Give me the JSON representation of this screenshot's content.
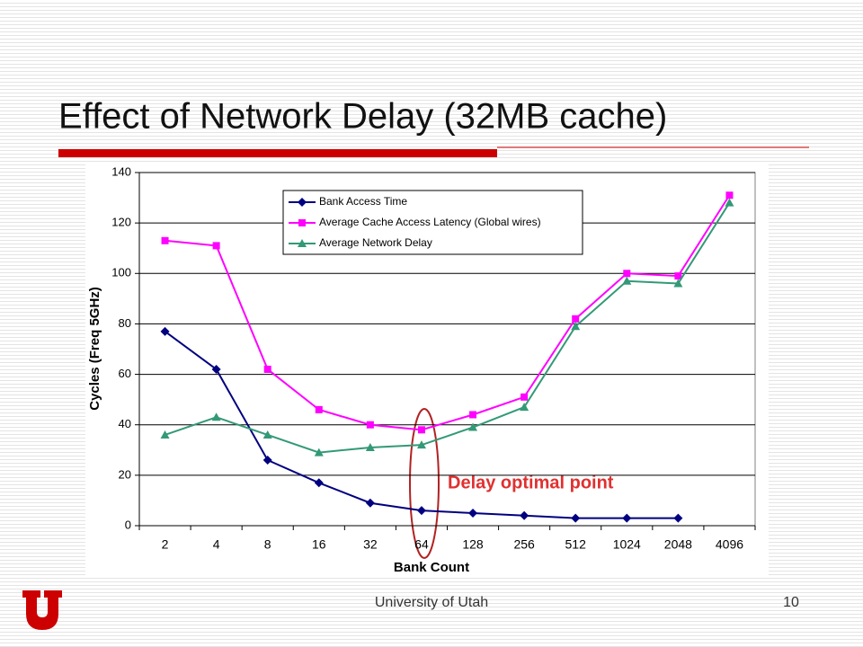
{
  "chart_data": {
    "type": "line",
    "title": "Effect of Network Delay (32MB cache)",
    "x_label": "Bank Count",
    "y_label": "Cycles (Freq 5GHz)",
    "categories": [
      "2",
      "4",
      "8",
      "16",
      "32",
      "64",
      "128",
      "256",
      "512",
      "1024",
      "2048",
      "4096"
    ],
    "series": [
      {
        "name": "Bank Access Time",
        "color": "#000080",
        "marker": "diamond",
        "values": [
          77,
          62,
          26,
          17,
          9,
          6,
          5,
          4,
          3,
          3,
          3,
          null
        ]
      },
      {
        "name": "Average Cache Access Latency (Global wires)",
        "color": "#ff00ff",
        "marker": "square",
        "values": [
          113,
          111,
          62,
          46,
          40,
          38,
          44,
          51,
          82,
          100,
          99,
          131
        ]
      },
      {
        "name": "Average Network Delay",
        "color": "#339977",
        "marker": "triangle",
        "values": [
          36,
          43,
          36,
          29,
          31,
          32,
          39,
          47,
          79,
          97,
          96,
          128
        ]
      }
    ],
    "ylim": [
      0,
      140
    ],
    "yticks": [
      0,
      20,
      40,
      60,
      80,
      100,
      120,
      140
    ],
    "grid": true,
    "legend": "top",
    "annotation": "Delay optimal point"
  },
  "footer": {
    "org": "University of Utah",
    "page": "10"
  }
}
